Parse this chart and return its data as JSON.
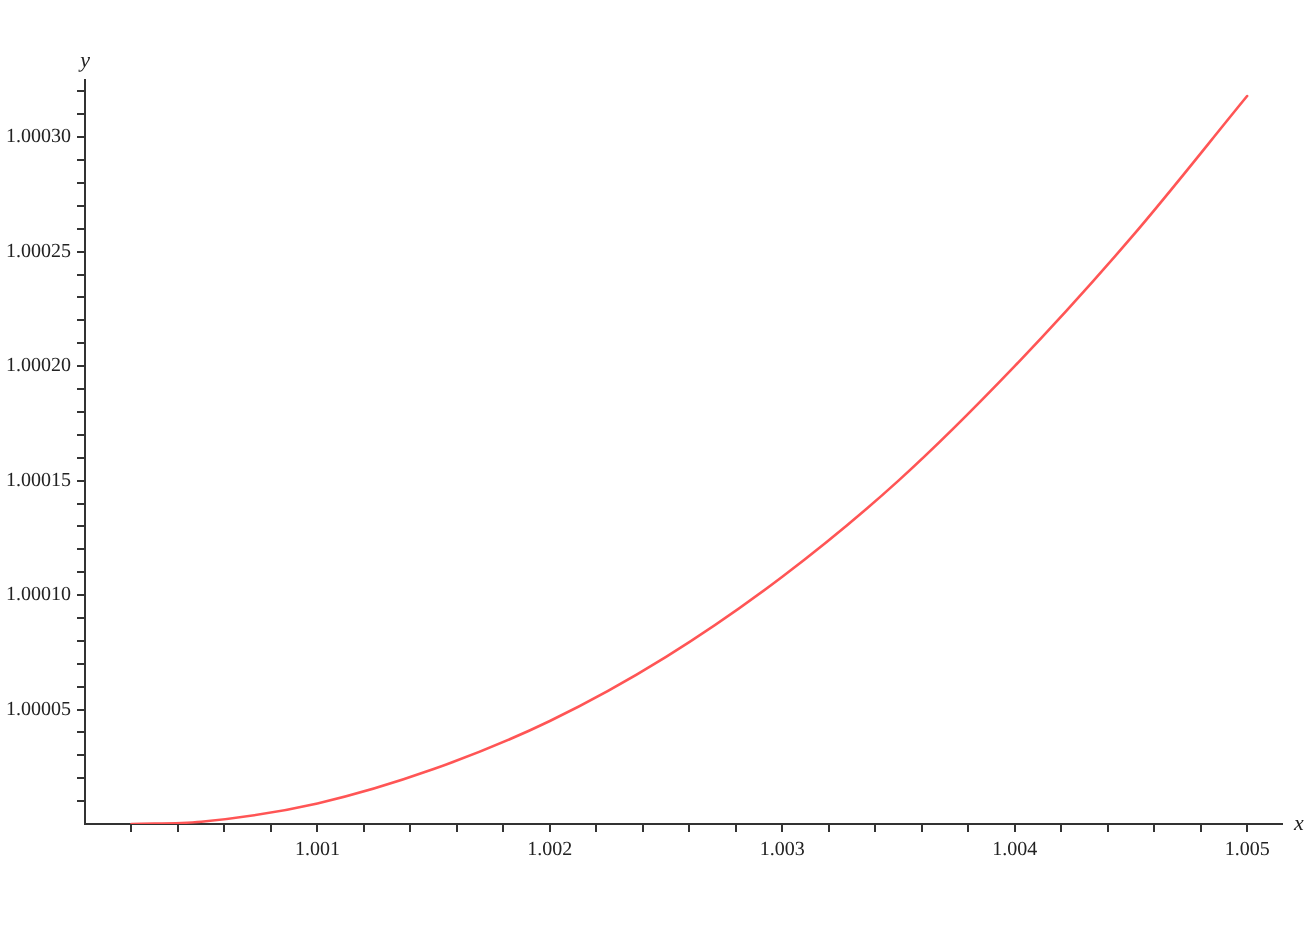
{
  "chart_data": {
    "type": "line",
    "xlabel": "x",
    "ylabel": "y",
    "series": [
      {
        "color": "#ff5555",
        "x": [
          1.0002,
          1.0005,
          1.001,
          1.0015,
          1.002,
          1.0025,
          1.003,
          1.0035,
          1.004,
          1.0045,
          1.005
        ],
        "values": [
          1.0,
          1.000001,
          1.000009,
          1.000024,
          1.000045,
          1.000073,
          1.000108,
          1.00015,
          1.0002,
          1.000256,
          1.000318
        ]
      }
    ],
    "xlim": [
      1.0,
      1.00515
    ],
    "ylim": [
      1.0,
      1.000325
    ],
    "xticks": [
      {
        "value": 1.0002,
        "label": null
      },
      {
        "value": 1.0004,
        "label": null
      },
      {
        "value": 1.0006,
        "label": null
      },
      {
        "value": 1.0008,
        "label": null
      },
      1.001,
      {
        "value": 1.0012,
        "label": null
      },
      {
        "value": 1.0014,
        "label": null
      },
      {
        "value": 1.0016,
        "label": null
      },
      {
        "value": 1.0018,
        "label": null
      },
      1.002,
      {
        "value": 1.0022,
        "label": null
      },
      {
        "value": 1.0024,
        "label": null
      },
      {
        "value": 1.0026,
        "label": null
      },
      {
        "value": 1.0028,
        "label": null
      },
      1.003,
      {
        "value": 1.0032,
        "label": null
      },
      {
        "value": 1.0034,
        "label": null
      },
      {
        "value": 1.0036,
        "label": null
      },
      {
        "value": 1.0038,
        "label": null
      },
      1.004,
      {
        "value": 1.0042,
        "label": null
      },
      {
        "value": 1.0044,
        "label": null
      },
      {
        "value": 1.0046,
        "label": null
      },
      {
        "value": 1.0048,
        "label": null
      },
      1.005
    ],
    "yticks": [
      {
        "value": 1.00001,
        "label": null
      },
      {
        "value": 1.00002,
        "label": null
      },
      {
        "value": 1.00003,
        "label": null
      },
      {
        "value": 1.00004,
        "label": null
      },
      1.00005,
      {
        "value": 1.00006,
        "label": null
      },
      {
        "value": 1.00007,
        "label": null
      },
      {
        "value": 1.00008,
        "label": null
      },
      {
        "value": 1.00009,
        "label": null
      },
      {
        "value": 1.0001,
        "label": "1.00010"
      },
      {
        "value": 1.00011,
        "label": null
      },
      {
        "value": 1.00012,
        "label": null
      },
      {
        "value": 1.00013,
        "label": null
      },
      {
        "value": 1.00014,
        "label": null
      },
      1.00015,
      {
        "value": 1.00016,
        "label": null
      },
      {
        "value": 1.00017,
        "label": null
      },
      {
        "value": 1.00018,
        "label": null
      },
      {
        "value": 1.00019,
        "label": null
      },
      {
        "value": 1.0002,
        "label": "1.00020"
      },
      {
        "value": 1.00021,
        "label": null
      },
      {
        "value": 1.00022,
        "label": null
      },
      {
        "value": 1.00023,
        "label": null
      },
      {
        "value": 1.00024,
        "label": null
      },
      1.00025,
      {
        "value": 1.00026,
        "label": null
      },
      {
        "value": 1.00027,
        "label": null
      },
      {
        "value": 1.00028,
        "label": null
      },
      {
        "value": 1.00029,
        "label": null
      },
      {
        "value": 1.0003,
        "label": "1.00030"
      },
      {
        "value": 1.00031,
        "label": null
      },
      {
        "value": 1.00032,
        "label": null
      }
    ],
    "grid": false,
    "legend": false,
    "marker": "none",
    "line_style": "solid"
  }
}
